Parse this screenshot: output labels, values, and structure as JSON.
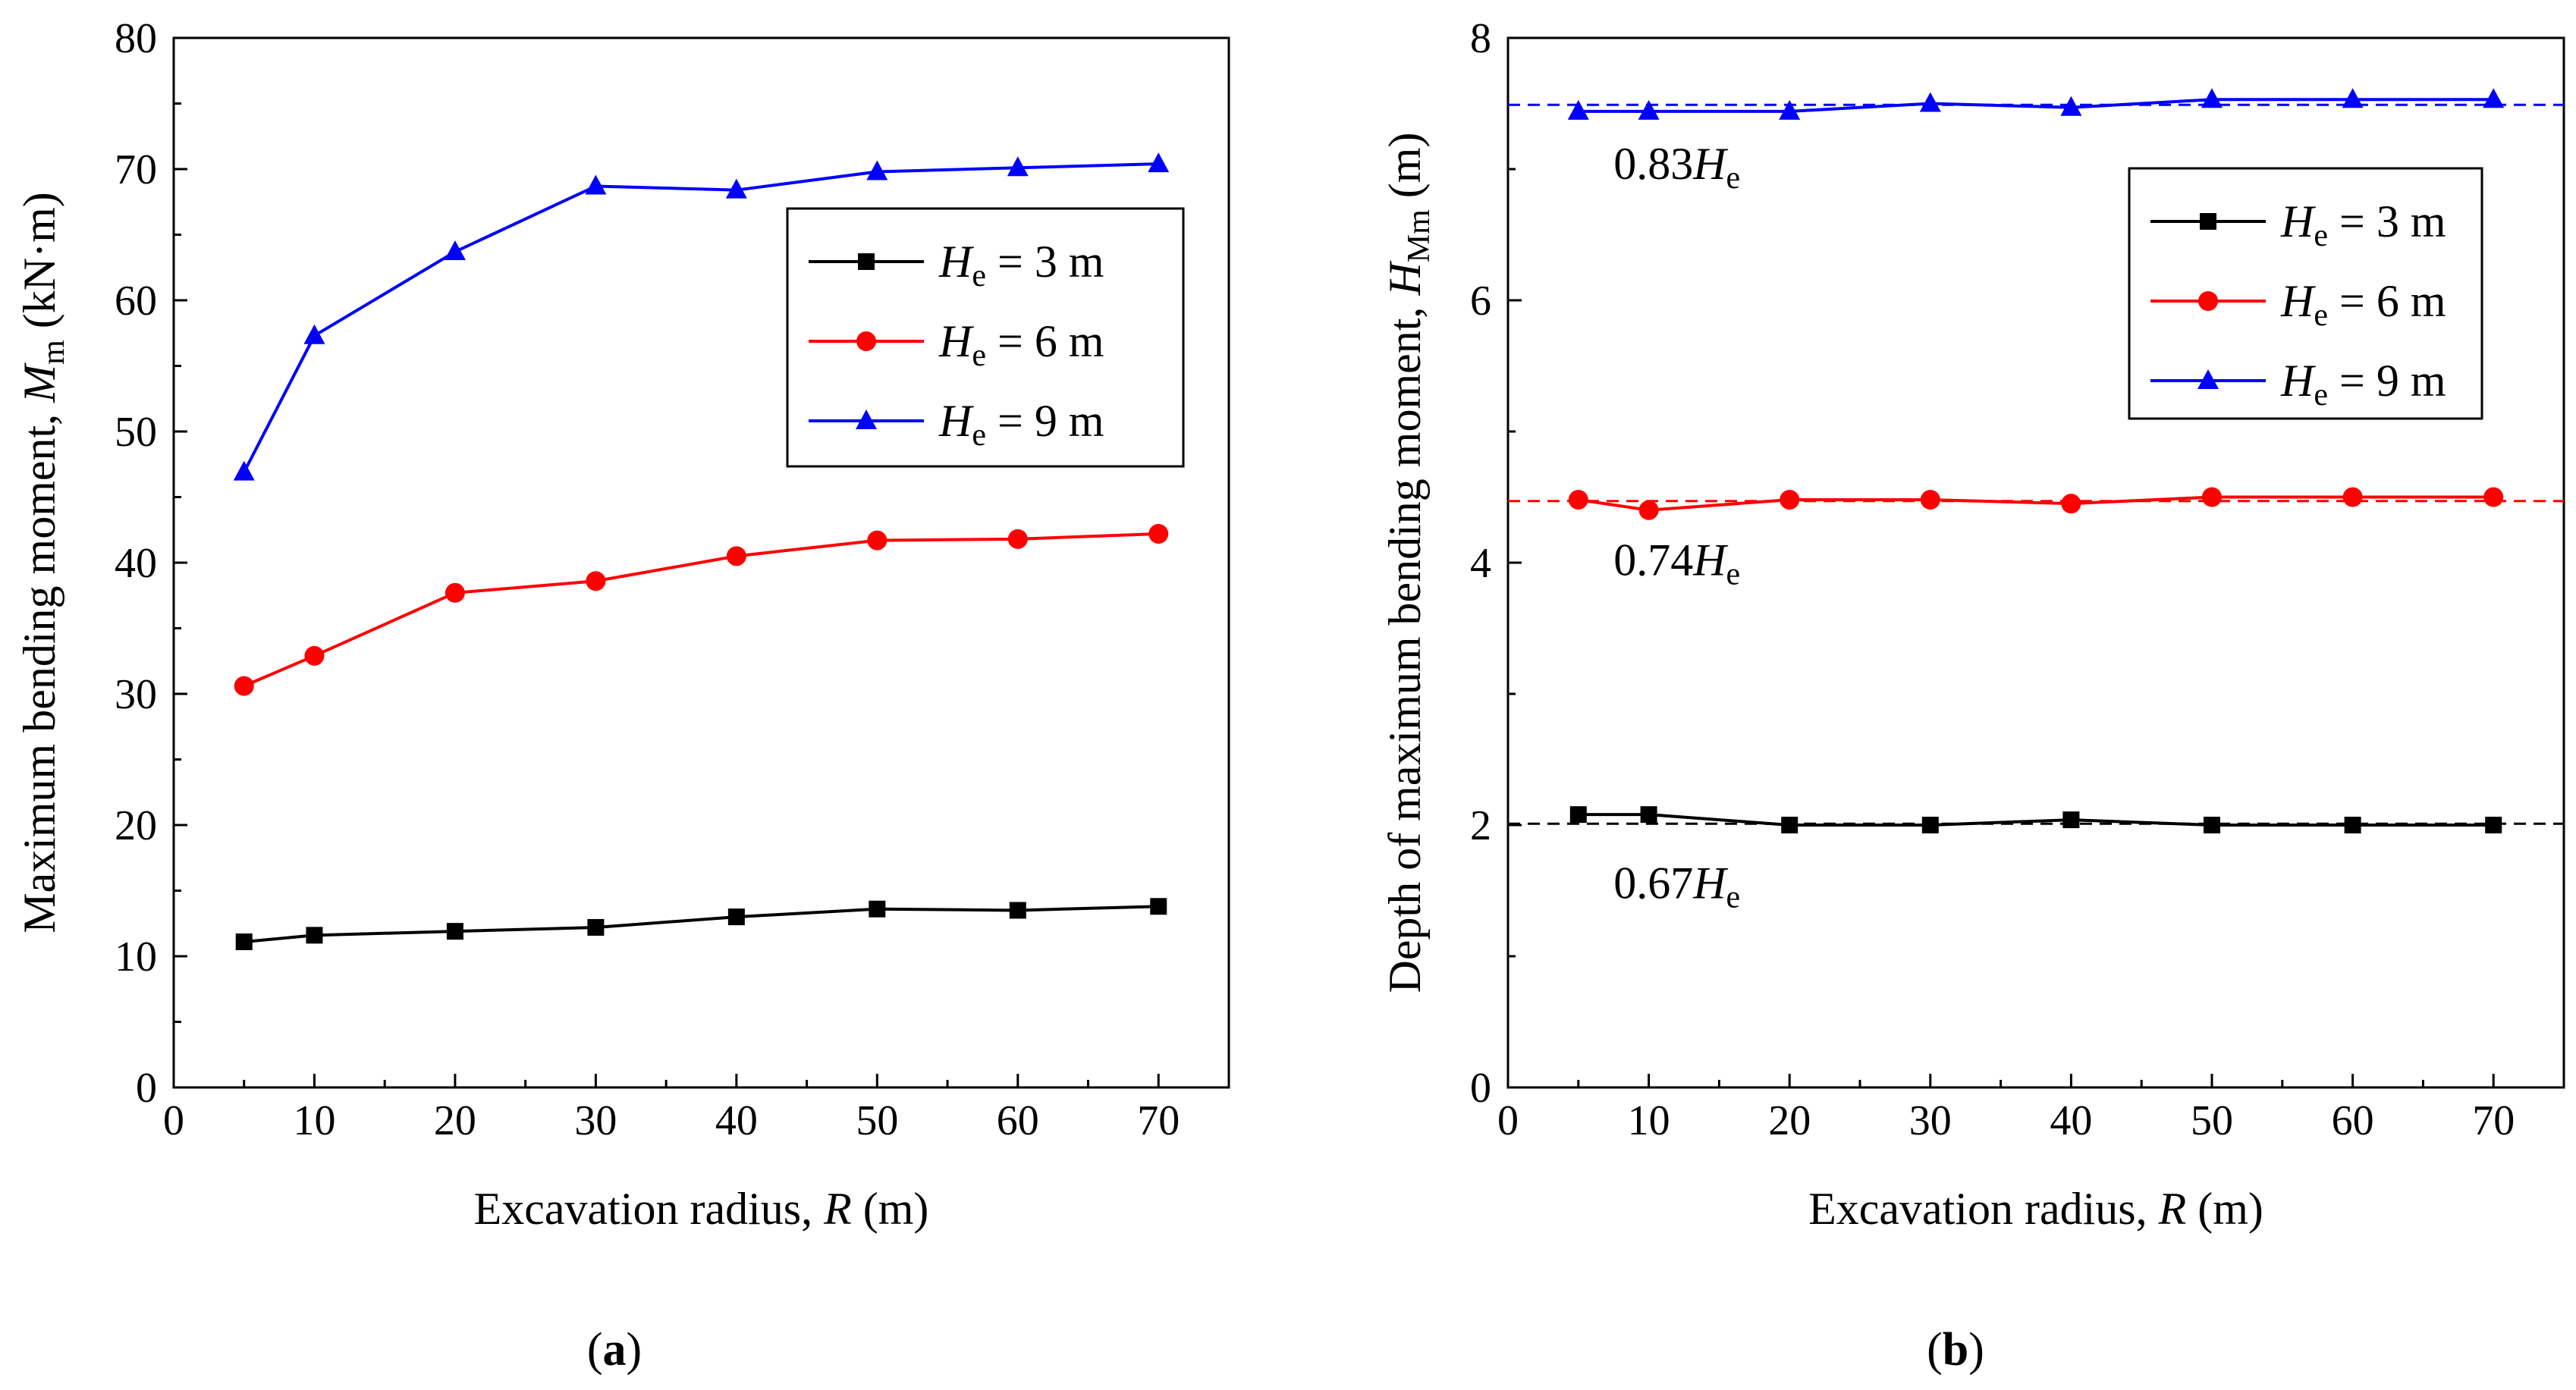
{
  "chart_data": [
    {
      "type": "line",
      "panel_label": "a",
      "xlabel": {
        "text": "Excavation radius, ",
        "italic": "R",
        "suffix": " (m)"
      },
      "ylabel": {
        "text": "Maximum bending moment, ",
        "italic": "M",
        "sub": "m",
        "suffix": " (kN·m)"
      },
      "xlim": [
        0,
        75
      ],
      "ylim": [
        0,
        80
      ],
      "xticks": [
        0,
        10,
        20,
        30,
        40,
        50,
        60,
        70
      ],
      "yticks": [
        0,
        10,
        20,
        30,
        40,
        50,
        60,
        70,
        80
      ],
      "grid": false,
      "legend_position": "top-right",
      "x": [
        5,
        10,
        20,
        30,
        40,
        50,
        60,
        70
      ],
      "series": [
        {
          "name": "He = 3 m",
          "legend_main": "H",
          "legend_sub": "e",
          "legend_rest": " = 3 m",
          "color": "#000000",
          "marker": "square",
          "values": [
            11.1,
            11.6,
            11.9,
            12.2,
            13.0,
            13.6,
            13.5,
            13.8
          ]
        },
        {
          "name": "He = 6 m",
          "legend_main": "H",
          "legend_sub": "e",
          "legend_rest": " = 6 m",
          "color": "#ff0000",
          "marker": "circle",
          "values": [
            30.6,
            32.9,
            37.7,
            38.6,
            40.5,
            41.7,
            41.8,
            42.2
          ]
        },
        {
          "name": "He = 9 m",
          "legend_main": "H",
          "legend_sub": "e",
          "legend_rest": " = 9 m",
          "color": "#0000ff",
          "marker": "triangle",
          "values": [
            46.9,
            57.3,
            63.7,
            68.7,
            68.4,
            69.8,
            70.1,
            70.4
          ]
        }
      ],
      "annotations": []
    },
    {
      "type": "line",
      "panel_label": "b",
      "xlabel": {
        "text": "Excavation radius, ",
        "italic": "R",
        "suffix": " (m)"
      },
      "ylabel": {
        "text": "Depth of maximum bending moment, ",
        "italic": "H",
        "sub": "Mm",
        "suffix": " (m)"
      },
      "xlim": [
        0,
        75
      ],
      "ylim": [
        0,
        8
      ],
      "xticks": [
        0,
        10,
        20,
        30,
        40,
        50,
        60,
        70
      ],
      "yticks": [
        0,
        2,
        4,
        6,
        8
      ],
      "grid": false,
      "legend_position": "top-right",
      "x": [
        5,
        10,
        20,
        30,
        40,
        50,
        60,
        70
      ],
      "series": [
        {
          "name": "He = 3 m",
          "legend_main": "H",
          "legend_sub": "e",
          "legend_rest": " = 3 m",
          "color": "#000000",
          "marker": "square",
          "values": [
            2.08,
            2.08,
            2.0,
            2.0,
            2.04,
            2.0,
            2.0,
            2.0
          ]
        },
        {
          "name": "He = 6 m",
          "legend_main": "H",
          "legend_sub": "e",
          "legend_rest": " = 6 m",
          "color": "#ff0000",
          "marker": "circle",
          "values": [
            4.48,
            4.4,
            4.48,
            4.48,
            4.45,
            4.5,
            4.5,
            4.5
          ]
        },
        {
          "name": "He = 9 m",
          "legend_main": "H",
          "legend_sub": "e",
          "legend_rest": " = 9 m",
          "color": "#0000ff",
          "marker": "triangle",
          "values": [
            7.44,
            7.44,
            7.44,
            7.5,
            7.47,
            7.53,
            7.53,
            7.53
          ]
        }
      ],
      "reference_lines": [
        {
          "y": 2.01,
          "color": "#000000",
          "label_num": "0.67",
          "label_var": "H",
          "label_sub": "e"
        },
        {
          "y": 4.47,
          "color": "#ff0000",
          "label_num": "0.74",
          "label_var": "H",
          "label_sub": "e"
        },
        {
          "y": 7.49,
          "color": "#0000ff",
          "label_num": "0.83",
          "label_var": "H",
          "label_sub": "e"
        }
      ]
    }
  ]
}
